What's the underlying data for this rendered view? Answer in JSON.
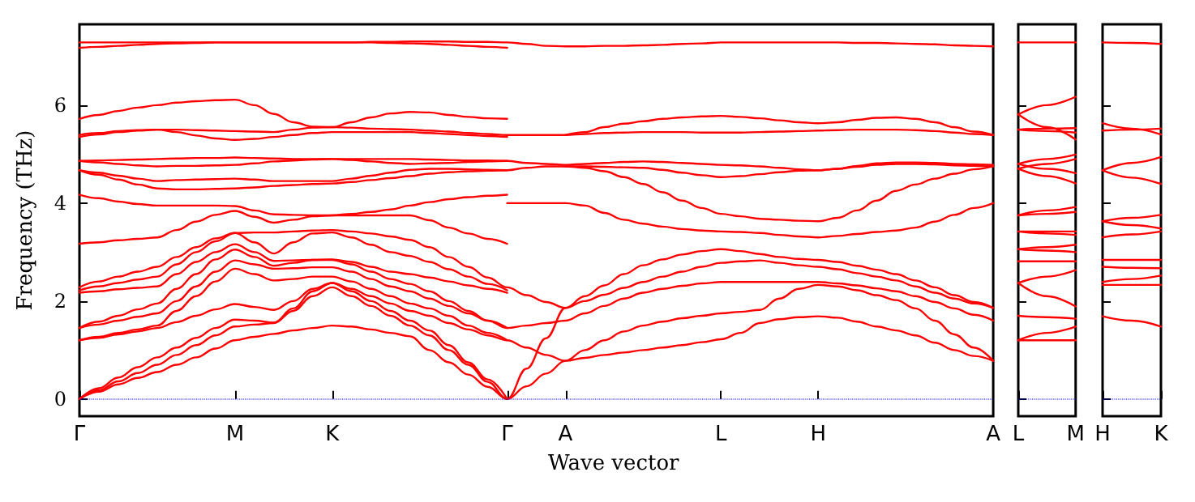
{
  "chart_data": [
    {
      "type": "line",
      "xlabel": "Wave vector",
      "ylabel": "Frequency (THz)",
      "categories": [
        "Γ",
        null,
        null,
        null,
        null,
        null,
        null,
        null,
        "M",
        null,
        null,
        null,
        null,
        "K",
        null,
        null,
        null,
        null,
        null,
        null,
        null,
        null,
        "Γ",
        null,
        null,
        "A",
        null,
        null,
        null,
        null,
        null,
        null,
        null,
        "L",
        null,
        null,
        null,
        null,
        "H",
        null,
        null,
        null,
        null,
        null,
        null,
        null,
        null,
        "A"
      ],
      "ylim": [
        -0.35,
        7.65
      ],
      "yticks": [
        0,
        2,
        4,
        6
      ],
      "marker": "none",
      "line_style": "solid",
      "ref_lines": [
        {
          "axis": "y",
          "value": 0,
          "color": "#0000ff",
          "line_style": "dotted"
        }
      ],
      "series": [
        {
          "color": "#ff0000",
          "values": [
            0,
            0.15,
            0.3,
            0.43,
            0.55,
            0.7,
            0.85,
            1.03,
            1.2,
            1.27,
            1.33,
            1.4,
            1.45,
            1.5,
            1.48,
            1.42,
            1.35,
            1.28,
            1.0,
            0.75,
            0.5,
            0.25,
            0,
            0.26,
            0.52,
            0.78,
            0.84,
            0.9,
            0.95,
            1.0,
            1.05,
            1.1,
            1.16,
            1.22,
            1.35,
            1.55,
            1.63,
            1.67,
            1.69,
            1.66,
            1.58,
            1.48,
            1.4,
            1.3,
            1.15,
            1.0,
            0.88,
            0.78
          ]
        },
        {
          "color": "#ff0000",
          "values": [
            0,
            0.18,
            0.36,
            0.53,
            0.7,
            0.9,
            1.1,
            1.3,
            1.48,
            1.52,
            1.55,
            1.8,
            2.1,
            2.28,
            2.1,
            1.9,
            1.7,
            1.5,
            1.3,
            1.0,
            0.7,
            0.35,
            0,
            0.62,
            1.24,
            1.86,
            2.0,
            2.13,
            2.27,
            2.39,
            2.5,
            2.6,
            2.7,
            2.78,
            2.81,
            2.83,
            2.78,
            2.73,
            2.7,
            2.65,
            2.57,
            2.5,
            2.42,
            2.3,
            2.17,
            2.05,
            1.95,
            1.86
          ]
        },
        {
          "color": "#ff0000",
          "values": [
            0,
            0.22,
            0.44,
            0.65,
            0.85,
            1.05,
            1.25,
            1.45,
            1.62,
            1.6,
            1.56,
            1.85,
            2.2,
            2.37,
            2.2,
            2.0,
            1.8,
            1.6,
            1.4,
            1.1,
            0.75,
            0.4,
            0,
            null,
            null,
            null,
            null,
            null,
            null,
            null,
            null,
            null,
            null,
            null,
            null,
            null,
            null,
            null,
            null,
            null,
            null,
            null,
            null,
            null,
            null,
            null,
            null,
            null
          ]
        },
        {
          "color": "#ff0000",
          "values": [
            1.2,
            1.25,
            1.32,
            1.38,
            1.45,
            1.57,
            1.7,
            1.83,
            1.94,
            1.88,
            1.82,
            2.0,
            2.25,
            2.37,
            2.25,
            2.1,
            1.95,
            1.8,
            1.7,
            1.55,
            1.42,
            1.3,
            1.2,
            1.05,
            0.9,
            0.78,
            1.0,
            1.2,
            1.38,
            1.5,
            1.58,
            1.65,
            1.7,
            1.75,
            1.78,
            1.82,
            2.05,
            2.25,
            2.33,
            2.3,
            2.22,
            2.12,
            2.02,
            1.85,
            1.6,
            1.32,
            1.05,
            0.78
          ]
        },
        {
          "color": "#ff0000",
          "values": [
            1.2,
            1.27,
            1.35,
            1.42,
            1.5,
            1.8,
            2.1,
            2.4,
            2.66,
            2.55,
            2.42,
            2.45,
            2.5,
            2.5,
            2.4,
            2.25,
            2.1,
            1.95,
            1.85,
            1.7,
            1.5,
            1.35,
            1.2,
            null,
            null,
            null,
            null,
            null,
            null,
            null,
            null,
            null,
            null,
            null,
            null,
            null,
            null,
            null,
            null,
            null,
            null,
            null,
            null,
            null,
            null,
            null,
            null,
            null
          ]
        },
        {
          "color": "#ff0000",
          "values": [
            1.45,
            1.52,
            1.6,
            1.68,
            1.75,
            2.0,
            2.3,
            2.6,
            2.83,
            2.75,
            2.66,
            2.67,
            2.69,
            2.69,
            2.6,
            2.45,
            2.3,
            2.2,
            2.05,
            1.9,
            1.75,
            1.6,
            1.45,
            1.5,
            1.55,
            1.6,
            1.75,
            1.9,
            2.05,
            2.17,
            2.25,
            2.31,
            2.36,
            2.39,
            2.39,
            2.39,
            2.39,
            2.39,
            2.39,
            2.36,
            2.32,
            2.26,
            2.2,
            2.1,
            1.98,
            1.85,
            1.72,
            1.6
          ]
        },
        {
          "color": "#ff0000",
          "values": [
            1.45,
            1.58,
            1.7,
            1.83,
            1.95,
            2.25,
            2.55,
            2.85,
            3.05,
            2.9,
            2.72,
            2.78,
            2.84,
            2.84,
            2.75,
            2.6,
            2.45,
            2.35,
            2.2,
            2.0,
            1.8,
            1.6,
            1.45,
            null,
            null,
            null,
            null,
            null,
            null,
            null,
            null,
            null,
            null,
            null,
            null,
            null,
            null,
            null,
            null,
            null,
            null,
            null,
            null,
            null,
            null,
            null,
            null,
            null
          ]
        },
        {
          "color": "#ff0000",
          "values": [
            2.17,
            2.2,
            2.24,
            2.27,
            2.3,
            2.55,
            2.8,
            3.0,
            3.16,
            3.0,
            2.82,
            2.83,
            2.84,
            2.85,
            2.8,
            2.7,
            2.6,
            2.55,
            2.48,
            2.4,
            2.32,
            2.25,
            2.17,
            null,
            null,
            null,
            null,
            null,
            null,
            null,
            null,
            null,
            null,
            null,
            null,
            null,
            null,
            null,
            null,
            null,
            null,
            null,
            null,
            null,
            null,
            null,
            null,
            null
          ]
        },
        {
          "color": "#ff0000",
          "values": [
            2.22,
            2.3,
            2.37,
            2.44,
            2.5,
            2.75,
            3.0,
            3.22,
            3.39,
            3.2,
            2.97,
            3.2,
            3.38,
            3.4,
            3.3,
            3.15,
            3.0,
            2.92,
            2.8,
            2.65,
            2.5,
            2.35,
            2.22,
            null,
            null,
            null,
            null,
            null,
            null,
            null,
            null,
            null,
            null,
            null,
            null,
            null,
            null,
            null,
            null,
            null,
            null,
            null,
            null,
            null,
            null,
            null,
            null,
            null
          ]
        },
        {
          "color": "#ff0000",
          "values": [
            2.28,
            2.4,
            2.5,
            2.6,
            2.7,
            2.9,
            3.1,
            3.28,
            3.39,
            3.4,
            3.4,
            3.42,
            3.44,
            3.45,
            3.42,
            3.38,
            3.32,
            3.25,
            3.1,
            2.9,
            2.7,
            2.48,
            2.28,
            2.12,
            1.98,
            1.86,
            2.1,
            2.32,
            2.55,
            2.73,
            2.85,
            2.95,
            3.02,
            3.06,
            3.02,
            2.96,
            2.9,
            2.86,
            2.84,
            2.8,
            2.72,
            2.64,
            2.55,
            2.42,
            2.28,
            2.12,
            1.98,
            1.86
          ]
        },
        {
          "color": "#ff0000",
          "values": [
            3.17,
            3.2,
            3.24,
            3.27,
            3.3,
            3.45,
            3.62,
            3.76,
            3.84,
            3.72,
            3.6,
            3.66,
            3.73,
            3.75,
            3.75,
            3.75,
            3.75,
            3.75,
            3.65,
            3.5,
            3.38,
            3.27,
            3.17,
            null,
            null,
            null,
            null,
            null,
            null,
            null,
            null,
            null,
            null,
            null,
            null,
            null,
            null,
            null,
            null,
            null,
            null,
            null,
            null,
            null,
            null,
            null,
            null,
            null
          ]
        },
        {
          "color": "#ff0000",
          "values": [
            4.17,
            4.1,
            4.03,
            3.98,
            3.95,
            3.95,
            3.95,
            3.95,
            3.94,
            3.85,
            3.77,
            3.76,
            3.75,
            3.75,
            3.78,
            3.82,
            3.87,
            3.95,
            4.02,
            4.08,
            4.12,
            4.15,
            4.17,
            null,
            null,
            null,
            null,
            null,
            null,
            null,
            null,
            null,
            null,
            null,
            null,
            null,
            null,
            null,
            null,
            null,
            null,
            null,
            null,
            null,
            null,
            null,
            null,
            null
          ]
        },
        {
          "color": "#ff0000",
          "values": [
            4.67,
            4.58,
            4.48,
            4.38,
            4.3,
            4.28,
            4.28,
            4.29,
            4.3,
            4.32,
            4.35,
            4.37,
            4.39,
            4.4,
            4.43,
            4.47,
            4.51,
            4.55,
            4.6,
            4.63,
            4.65,
            4.66,
            4.67,
            4.72,
            4.75,
            4.75,
            4.72,
            4.65,
            4.53,
            4.39,
            4.22,
            4.05,
            3.9,
            3.78,
            3.73,
            3.68,
            3.66,
            3.64,
            3.63,
            3.7,
            3.85,
            4.05,
            4.25,
            4.38,
            4.5,
            4.6,
            4.69,
            4.75
          ]
        },
        {
          "color": "#ff0000",
          "values": [
            4.67,
            4.62,
            4.56,
            4.5,
            4.45,
            4.47,
            4.48,
            4.49,
            4.5,
            4.48,
            4.45,
            4.45,
            4.45,
            4.45,
            4.5,
            4.56,
            4.62,
            4.68,
            4.7,
            4.7,
            4.69,
            4.68,
            4.67,
            null,
            null,
            null,
            null,
            null,
            null,
            null,
            null,
            null,
            null,
            null,
            null,
            null,
            null,
            null,
            null,
            null,
            null,
            null,
            null,
            null,
            null,
            null,
            null,
            null
          ]
        },
        {
          "color": "#ff0000",
          "values": [
            4.86,
            4.83,
            4.8,
            4.77,
            4.75,
            4.76,
            4.76,
            4.77,
            4.78,
            4.81,
            4.85,
            4.87,
            4.89,
            4.9,
            4.88,
            4.85,
            4.82,
            4.8,
            4.81,
            4.82,
            4.84,
            4.85,
            4.86,
            4.82,
            4.8,
            4.78,
            4.8,
            4.82,
            4.84,
            4.85,
            4.84,
            4.82,
            4.8,
            4.78,
            4.77,
            4.75,
            4.72,
            4.69,
            4.67,
            4.7,
            4.76,
            4.81,
            4.83,
            4.83,
            4.82,
            4.8,
            4.79,
            4.78
          ]
        },
        {
          "color": "#ff0000",
          "values": [
            4.86,
            4.87,
            4.88,
            4.89,
            4.9,
            4.91,
            4.92,
            4.92,
            4.93,
            4.92,
            4.91,
            4.9,
            4.9,
            4.9,
            4.9,
            4.9,
            4.9,
            4.9,
            4.89,
            4.88,
            4.87,
            4.87,
            4.86,
            null,
            null,
            null,
            null,
            null,
            null,
            null,
            null,
            null,
            null,
            null,
            null,
            null,
            null,
            null,
            null,
            null,
            null,
            null,
            null,
            null,
            null,
            null,
            null,
            null
          ]
        },
        {
          "color": "#ff0000",
          "values": [
            5.35,
            5.4,
            5.45,
            5.48,
            5.5,
            5.45,
            5.38,
            5.32,
            5.29,
            5.31,
            5.35,
            5.39,
            5.43,
            5.45,
            5.45,
            5.45,
            5.45,
            5.45,
            5.43,
            5.41,
            5.39,
            5.37,
            5.35,
            null,
            null,
            null,
            null,
            null,
            null,
            null,
            null,
            null,
            null,
            null,
            null,
            null,
            null,
            null,
            null,
            null,
            null,
            null,
            null,
            null,
            null,
            null,
            null,
            null
          ]
        },
        {
          "color": "#ff0000",
          "values": [
            5.39,
            5.43,
            5.47,
            5.49,
            5.5,
            5.5,
            5.49,
            5.48,
            5.47,
            5.46,
            5.45,
            5.5,
            5.54,
            5.55,
            5.54,
            5.52,
            5.51,
            5.5,
            5.48,
            5.46,
            5.43,
            5.41,
            5.39,
            5.39,
            5.39,
            5.39,
            5.41,
            5.43,
            5.44,
            5.45,
            5.45,
            5.45,
            5.44,
            5.44,
            5.44,
            5.45,
            5.46,
            5.47,
            5.48,
            5.49,
            5.5,
            5.5,
            5.5,
            5.49,
            5.47,
            5.44,
            5.41,
            5.39
          ]
        },
        {
          "color": "#ff0000",
          "values": [
            5.72,
            5.8,
            5.88,
            5.95,
            6.0,
            6.05,
            6.08,
            6.1,
            6.11,
            6.0,
            5.82,
            5.65,
            5.56,
            5.55,
            5.65,
            5.75,
            5.83,
            5.86,
            5.85,
            5.8,
            5.76,
            5.73,
            5.72,
            null,
            null,
            null,
            null,
            null,
            null,
            null,
            null,
            null,
            null,
            null,
            null,
            null,
            null,
            null,
            null,
            null,
            null,
            null,
            null,
            null,
            null,
            null,
            null,
            null
          ]
        },
        {
          "color": "#ff0000",
          "values": [
            7.17,
            7.19,
            7.21,
            7.23,
            7.25,
            7.26,
            7.27,
            7.28,
            7.28,
            7.28,
            7.28,
            7.28,
            7.28,
            7.28,
            7.28,
            7.28,
            7.27,
            7.26,
            7.25,
            7.23,
            7.21,
            7.19,
            7.17,
            null,
            null,
            null,
            null,
            null,
            null,
            null,
            null,
            null,
            null,
            null,
            null,
            null,
            null,
            null,
            null,
            null,
            null,
            null,
            null,
            null,
            null,
            null,
            null,
            null
          ]
        },
        {
          "color": "#ff0000",
          "values": [
            7.28,
            7.28,
            7.28,
            7.28,
            7.28,
            7.28,
            7.28,
            7.28,
            7.28,
            7.28,
            7.28,
            7.28,
            7.28,
            7.28,
            7.28,
            7.29,
            7.29,
            7.3,
            7.3,
            7.3,
            7.29,
            7.29,
            7.28,
            7.25,
            7.21,
            7.2,
            7.2,
            7.21,
            7.21,
            7.22,
            7.23,
            7.25,
            7.26,
            7.28,
            7.28,
            7.28,
            7.28,
            7.28,
            7.28,
            7.28,
            7.27,
            7.27,
            7.26,
            7.25,
            7.24,
            7.22,
            7.21,
            7.2
          ]
        },
        {
          "color": "#ff0000",
          "values": [
            null,
            null,
            null,
            null,
            null,
            null,
            null,
            null,
            null,
            null,
            null,
            null,
            null,
            null,
            null,
            null,
            null,
            null,
            null,
            null,
            null,
            null,
            4.0,
            4.0,
            4.0,
            4.0,
            3.95,
            3.8,
            3.66,
            3.58,
            3.52,
            3.47,
            3.44,
            3.42,
            3.41,
            3.39,
            3.35,
            3.32,
            3.3,
            3.33,
            3.37,
            3.41,
            3.44,
            3.5,
            3.62,
            3.76,
            3.9,
            4.0
          ]
        },
        {
          "color": "#ff0000",
          "values": [
            null,
            null,
            null,
            null,
            null,
            null,
            null,
            null,
            null,
            null,
            null,
            null,
            null,
            null,
            null,
            null,
            null,
            null,
            null,
            null,
            null,
            null,
            null,
            null,
            null,
            4.75,
            4.75,
            4.74,
            4.73,
            4.72,
            4.68,
            4.62,
            4.57,
            4.53,
            4.55,
            4.59,
            4.63,
            4.66,
            4.67,
            4.7,
            4.74,
            4.78,
            4.8,
            4.8,
            4.79,
            4.77,
            4.76,
            4.75
          ]
        },
        {
          "color": "#ff0000",
          "values": [
            null,
            null,
            null,
            null,
            null,
            null,
            null,
            null,
            null,
            null,
            null,
            null,
            null,
            null,
            null,
            null,
            null,
            null,
            null,
            null,
            null,
            null,
            null,
            null,
            null,
            5.39,
            5.45,
            5.55,
            5.62,
            5.67,
            5.72,
            5.75,
            5.77,
            5.78,
            5.76,
            5.73,
            5.69,
            5.65,
            5.63,
            5.65,
            5.7,
            5.74,
            5.75,
            5.72,
            5.65,
            5.55,
            5.46,
            5.39
          ]
        }
      ]
    },
    {
      "type": "line",
      "categories": [
        "L",
        null,
        "M"
      ],
      "ylim": [
        -0.35,
        7.65
      ],
      "yticks": [
        0,
        2,
        4,
        6
      ],
      "tick_labels": "x",
      "marker": "none",
      "line_style": "solid",
      "ref_lines": [
        {
          "axis": "y",
          "value": 0,
          "color": "#0000ff",
          "line_style": "dotted"
        }
      ],
      "series": [
        {
          "color": "#ff0000",
          "values": [
            1.2,
            1.2,
            1.2
          ]
        },
        {
          "color": "#ff0000",
          "values": [
            1.2,
            1.35,
            1.48
          ]
        },
        {
          "color": "#ff0000",
          "values": [
            1.7,
            1.67,
            1.64
          ]
        },
        {
          "color": "#ff0000",
          "values": [
            2.37,
            2.1,
            1.89
          ]
        },
        {
          "color": "#ff0000",
          "values": [
            2.37,
            2.5,
            2.63
          ]
        },
        {
          "color": "#ff0000",
          "values": [
            2.81,
            2.81,
            2.81
          ]
        },
        {
          "color": "#ff0000",
          "values": [
            3.06,
            3.1,
            3.15
          ]
        },
        {
          "color": "#ff0000",
          "values": [
            3.06,
            3.03,
            3.0
          ]
        },
        {
          "color": "#ff0000",
          "values": [
            3.42,
            3.42,
            3.42
          ]
        },
        {
          "color": "#ff0000",
          "values": [
            3.42,
            3.38,
            3.35
          ]
        },
        {
          "color": "#ff0000",
          "values": [
            3.75,
            3.85,
            3.92
          ]
        },
        {
          "color": "#ff0000",
          "values": [
            3.75,
            3.78,
            3.82
          ]
        },
        {
          "color": "#ff0000",
          "values": [
            4.7,
            4.55,
            4.4
          ]
        },
        {
          "color": "#ff0000",
          "values": [
            4.8,
            4.7,
            4.61
          ]
        },
        {
          "color": "#ff0000",
          "values": [
            4.8,
            4.9,
            4.99
          ]
        },
        {
          "color": "#ff0000",
          "values": [
            4.7,
            4.8,
            4.9
          ]
        },
        {
          "color": "#ff0000",
          "values": [
            5.5,
            5.52,
            5.53
          ]
        },
        {
          "color": "#ff0000",
          "values": [
            5.5,
            5.47,
            5.44
          ]
        },
        {
          "color": "#ff0000",
          "values": [
            5.81,
            5.55,
            5.3
          ]
        },
        {
          "color": "#ff0000",
          "values": [
            5.81,
            6.0,
            6.17
          ]
        },
        {
          "color": "#ff0000",
          "values": [
            7.28,
            7.28,
            7.28
          ]
        }
      ]
    },
    {
      "type": "line",
      "categories": [
        "H",
        null,
        "K"
      ],
      "ylim": [
        -0.35,
        7.65
      ],
      "yticks": [
        0,
        2,
        4,
        6
      ],
      "tick_labels": "x",
      "marker": "none",
      "line_style": "solid",
      "ref_lines": [
        {
          "axis": "y",
          "value": 0,
          "color": "#0000ff",
          "line_style": "dotted"
        }
      ],
      "series": [
        {
          "color": "#ff0000",
          "values": [
            1.69,
            1.6,
            1.48
          ]
        },
        {
          "color": "#ff0000",
          "values": [
            2.33,
            2.33,
            2.33
          ]
        },
        {
          "color": "#ff0000",
          "values": [
            2.39,
            2.45,
            2.52
          ]
        },
        {
          "color": "#ff0000",
          "values": [
            2.7,
            2.68,
            2.67
          ]
        },
        {
          "color": "#ff0000",
          "values": [
            2.84,
            2.84,
            2.84
          ]
        },
        {
          "color": "#ff0000",
          "values": [
            3.3,
            3.36,
            3.42
          ]
        },
        {
          "color": "#ff0000",
          "values": [
            3.63,
            3.55,
            3.48
          ]
        },
        {
          "color": "#ff0000",
          "values": [
            3.63,
            3.7,
            3.76
          ]
        },
        {
          "color": "#ff0000",
          "values": [
            4.67,
            4.82,
            4.94
          ]
        },
        {
          "color": "#ff0000",
          "values": [
            4.67,
            4.52,
            4.39
          ]
        },
        {
          "color": "#ff0000",
          "values": [
            5.48,
            5.5,
            5.52
          ]
        },
        {
          "color": "#ff0000",
          "values": [
            5.63,
            5.52,
            5.4
          ]
        },
        {
          "color": "#ff0000",
          "values": [
            7.28,
            7.27,
            7.25
          ]
        }
      ]
    }
  ]
}
